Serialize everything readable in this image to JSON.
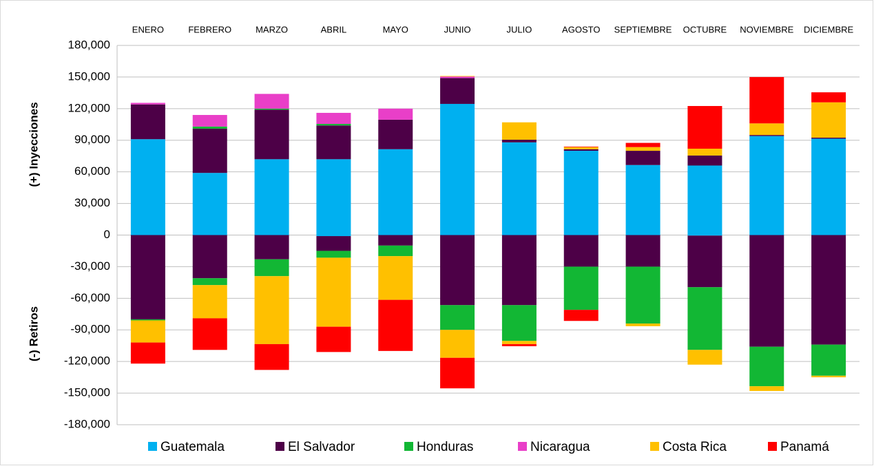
{
  "chart_data": {
    "type": "bar",
    "stacked": true,
    "y_label_positive": "(+) Inyecciones",
    "y_label_negative": "(-) Retiros",
    "categories": [
      "ENERO",
      "FEBRERO",
      "MARZO",
      "ABRIL",
      "MAYO",
      "JUNIO",
      "JULIO",
      "AGOSTO",
      "SEPTIEMBRE",
      "OCTUBRE",
      "NOVIEMBRE",
      "DICIEMBRE"
    ],
    "series": [
      {
        "name": "Guatemala",
        "color": "#00b0f0",
        "values": [
          91000,
          59000,
          72000,
          72000,
          81500,
          124500,
          88000,
          80000,
          66500,
          66000,
          94000,
          91500
        ],
        "withdrawals": [
          0,
          0,
          0,
          -1000,
          0,
          0,
          0,
          0,
          0,
          -500,
          0,
          0
        ]
      },
      {
        "name": "El Salvador",
        "color": "#4d0047",
        "values": [
          33000,
          42000,
          47000,
          32000,
          28000,
          24500,
          2500,
          1500,
          13500,
          9500,
          1000,
          1000
        ],
        "withdrawals": [
          -80000,
          -41000,
          -23000,
          -14000,
          -10000,
          -66500,
          -66500,
          -30000,
          -30000,
          -49000,
          -106000,
          -104000
        ]
      },
      {
        "name": "Honduras",
        "color": "#12b734",
        "values": [
          0,
          2000,
          1000,
          1500,
          0,
          0,
          0,
          0,
          0,
          0,
          0,
          0
        ],
        "withdrawals": [
          -1000,
          -6500,
          -16000,
          -6500,
          -10000,
          -23500,
          -34000,
          -41000,
          -54000,
          -59500,
          -37500,
          -29500
        ]
      },
      {
        "name": "Nicaragua",
        "color": "#e93fc8",
        "values": [
          1500,
          11000,
          14000,
          10500,
          10500,
          1500,
          0,
          0,
          0,
          0,
          0,
          0
        ],
        "withdrawals": [
          0,
          0,
          0,
          0,
          0,
          0,
          0,
          0,
          0,
          0,
          0,
          0
        ]
      },
      {
        "name": "Costa Rica",
        "color": "#ffc000",
        "values": [
          0,
          0,
          0,
          0,
          0,
          500,
          16500,
          2000,
          3500,
          6500,
          11000,
          33500
        ],
        "withdrawals": [
          -21000,
          -31500,
          -64500,
          -65500,
          -41500,
          -26500,
          -3000,
          0,
          -2500,
          -14000,
          -4500,
          -1500
        ]
      },
      {
        "name": "Panamá",
        "color": "#ff0000",
        "values": [
          0,
          0,
          0,
          0,
          0,
          0,
          0,
          500,
          4000,
          40500,
          44000,
          9500
        ],
        "withdrawals": [
          -20000,
          -30000,
          -24500,
          -24000,
          -48500,
          -29000,
          -2000,
          -10500,
          0,
          0,
          0,
          0
        ]
      }
    ],
    "ylim": [
      -180000,
      180000
    ],
    "yticks": [
      {
        "value": -180000,
        "label": "-180,000"
      },
      {
        "value": -150000,
        "label": "-150,000"
      },
      {
        "value": -120000,
        "label": "-120,000"
      },
      {
        "value": -90000,
        "label": "-90,000"
      },
      {
        "value": -60000,
        "label": "-60,000"
      },
      {
        "value": -30000,
        "label": "-30,000"
      },
      0,
      {
        "value": 30000,
        "label": "30,000"
      },
      {
        "value": 60000,
        "label": "60,000"
      },
      {
        "value": 90000,
        "label": "90,000"
      },
      {
        "value": 120000,
        "label": "120,000"
      },
      {
        "value": 150000,
        "label": "150,000"
      },
      {
        "value": 180000,
        "label": "180,000"
      }
    ],
    "grid": true,
    "legend": "bottom"
  }
}
